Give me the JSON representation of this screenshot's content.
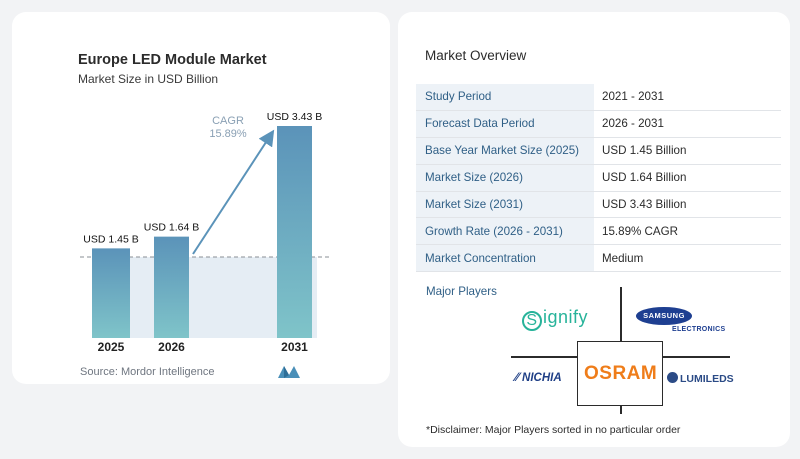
{
  "chart": {
    "title": "Europe LED Module Market",
    "subtitle": "Market Size in USD Billion",
    "source": "Source: Mordor Intelligence",
    "cagr_label": "CAGR",
    "cagr_value": "15.89%"
  },
  "chart_data": {
    "type": "bar",
    "title": "Europe LED Module Market",
    "subtitle": "Market Size in USD Billion",
    "categories": [
      "2025",
      "2026",
      "2031"
    ],
    "values": [
      1.45,
      1.64,
      3.43
    ],
    "data_labels": [
      "USD 1.45 B",
      "USD 1.64 B",
      "USD 3.43 B"
    ],
    "ylim": [
      0,
      3.6
    ],
    "grid": false,
    "annotation": {
      "text": "CAGR",
      "value": "15.89%"
    },
    "colors": {
      "bar_top": "#5b93b9",
      "bar_bottom": "#7fc4c9",
      "band": "#e5edf4",
      "arrow": "#5b93b9"
    }
  },
  "overview": {
    "title": "Market Overview",
    "rows": [
      {
        "label": "Study Period",
        "value": "2021 - 2031"
      },
      {
        "label": "Forecast Data Period",
        "value": "2026 - 2031"
      },
      {
        "label": "Base Year Market Size (2025)",
        "value": "USD 1.45 Billion"
      },
      {
        "label": "Market Size (2026)",
        "value": "USD 1.64 Billion"
      },
      {
        "label": "Market Size (2031)",
        "value": "USD 3.43 Billion"
      },
      {
        "label": "Growth Rate (2026 - 2031)",
        "value": "15.89% CAGR"
      },
      {
        "label": "Market Concentration",
        "value": "Medium"
      }
    ]
  },
  "players": {
    "label": "Major Players",
    "signify": "ignify",
    "signify_initial": "S",
    "samsung": "SAMSUNG",
    "samsung_sub": "ELECTRONICS",
    "osram": "OSRAM",
    "nichia": "NICHIA",
    "lumileds": "LUMILEDS"
  },
  "disclaimer": "*Disclaimer: Major Players sorted in no particular order",
  "colors": {
    "label_blue": "#2f5f86",
    "signify": "#27b39a",
    "samsung": "#1e3f91",
    "osram": "#ef7d1a"
  }
}
